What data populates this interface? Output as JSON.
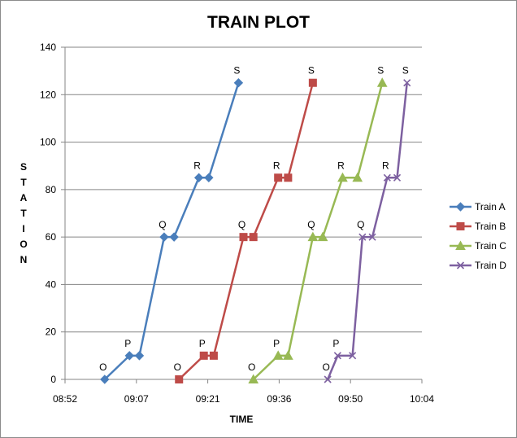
{
  "chart_data": {
    "type": "line",
    "title": "TRAIN PLOT",
    "xlabel": "TIME",
    "ylabel": "STATION",
    "x_tick_labels": [
      "08:52",
      "09:07",
      "09:21",
      "09:36",
      "09:50",
      "10:04"
    ],
    "x_ticks": [
      "08:52",
      "09:06:24",
      "09:20:48",
      "09:35:12",
      "09:49:36",
      "10:04"
    ],
    "xlim": [
      "08:52",
      "10:04"
    ],
    "ylim": [
      0,
      140
    ],
    "y_ticks": [
      0,
      20,
      40,
      60,
      80,
      100,
      120,
      140
    ],
    "grid": "horizontal",
    "legend_position": "right",
    "series": [
      {
        "name": "Train A",
        "color": "#4a7ebb",
        "marker": "diamond",
        "points": [
          {
            "x": "09:00",
            "y": 0,
            "label": "O"
          },
          {
            "x": "09:05",
            "y": 10,
            "label": "P"
          },
          {
            "x": "09:07",
            "y": 10
          },
          {
            "x": "09:12",
            "y": 60,
            "label": "Q"
          },
          {
            "x": "09:14",
            "y": 60
          },
          {
            "x": "09:19",
            "y": 85,
            "label": "R"
          },
          {
            "x": "09:21",
            "y": 85
          },
          {
            "x": "09:27",
            "y": 125,
            "label": "S"
          }
        ]
      },
      {
        "name": "Train B",
        "color": "#be4b48",
        "marker": "square",
        "points": [
          {
            "x": "09:15",
            "y": 0,
            "label": "O"
          },
          {
            "x": "09:20",
            "y": 10,
            "label": "P"
          },
          {
            "x": "09:22",
            "y": 10
          },
          {
            "x": "09:28",
            "y": 60,
            "label": "Q"
          },
          {
            "x": "09:30",
            "y": 60
          },
          {
            "x": "09:35",
            "y": 85,
            "label": "R"
          },
          {
            "x": "09:37",
            "y": 85
          },
          {
            "x": "09:42",
            "y": 125,
            "label": "S"
          }
        ]
      },
      {
        "name": "Train C",
        "color": "#98b954",
        "marker": "triangle",
        "points": [
          {
            "x": "09:30",
            "y": 0,
            "label": "O"
          },
          {
            "x": "09:35",
            "y": 10,
            "label": "P"
          },
          {
            "x": "09:37",
            "y": 10
          },
          {
            "x": "09:42",
            "y": 60,
            "label": "Q"
          },
          {
            "x": "09:44",
            "y": 60
          },
          {
            "x": "09:48",
            "y": 85,
            "label": "R"
          },
          {
            "x": "09:51",
            "y": 85
          },
          {
            "x": "09:56",
            "y": 125,
            "label": "S"
          }
        ]
      },
      {
        "name": "Train D",
        "color": "#7d60a0",
        "marker": "x",
        "points": [
          {
            "x": "09:45",
            "y": 0,
            "label": "O"
          },
          {
            "x": "09:47",
            "y": 10,
            "label": "P"
          },
          {
            "x": "09:50",
            "y": 10
          },
          {
            "x": "09:52",
            "y": 60,
            "label": "Q"
          },
          {
            "x": "09:54",
            "y": 60
          },
          {
            "x": "09:57",
            "y": 85,
            "label": "R"
          },
          {
            "x": "09:59",
            "y": 85
          },
          {
            "x": "10:01",
            "y": 125,
            "label": "S"
          }
        ]
      }
    ]
  }
}
